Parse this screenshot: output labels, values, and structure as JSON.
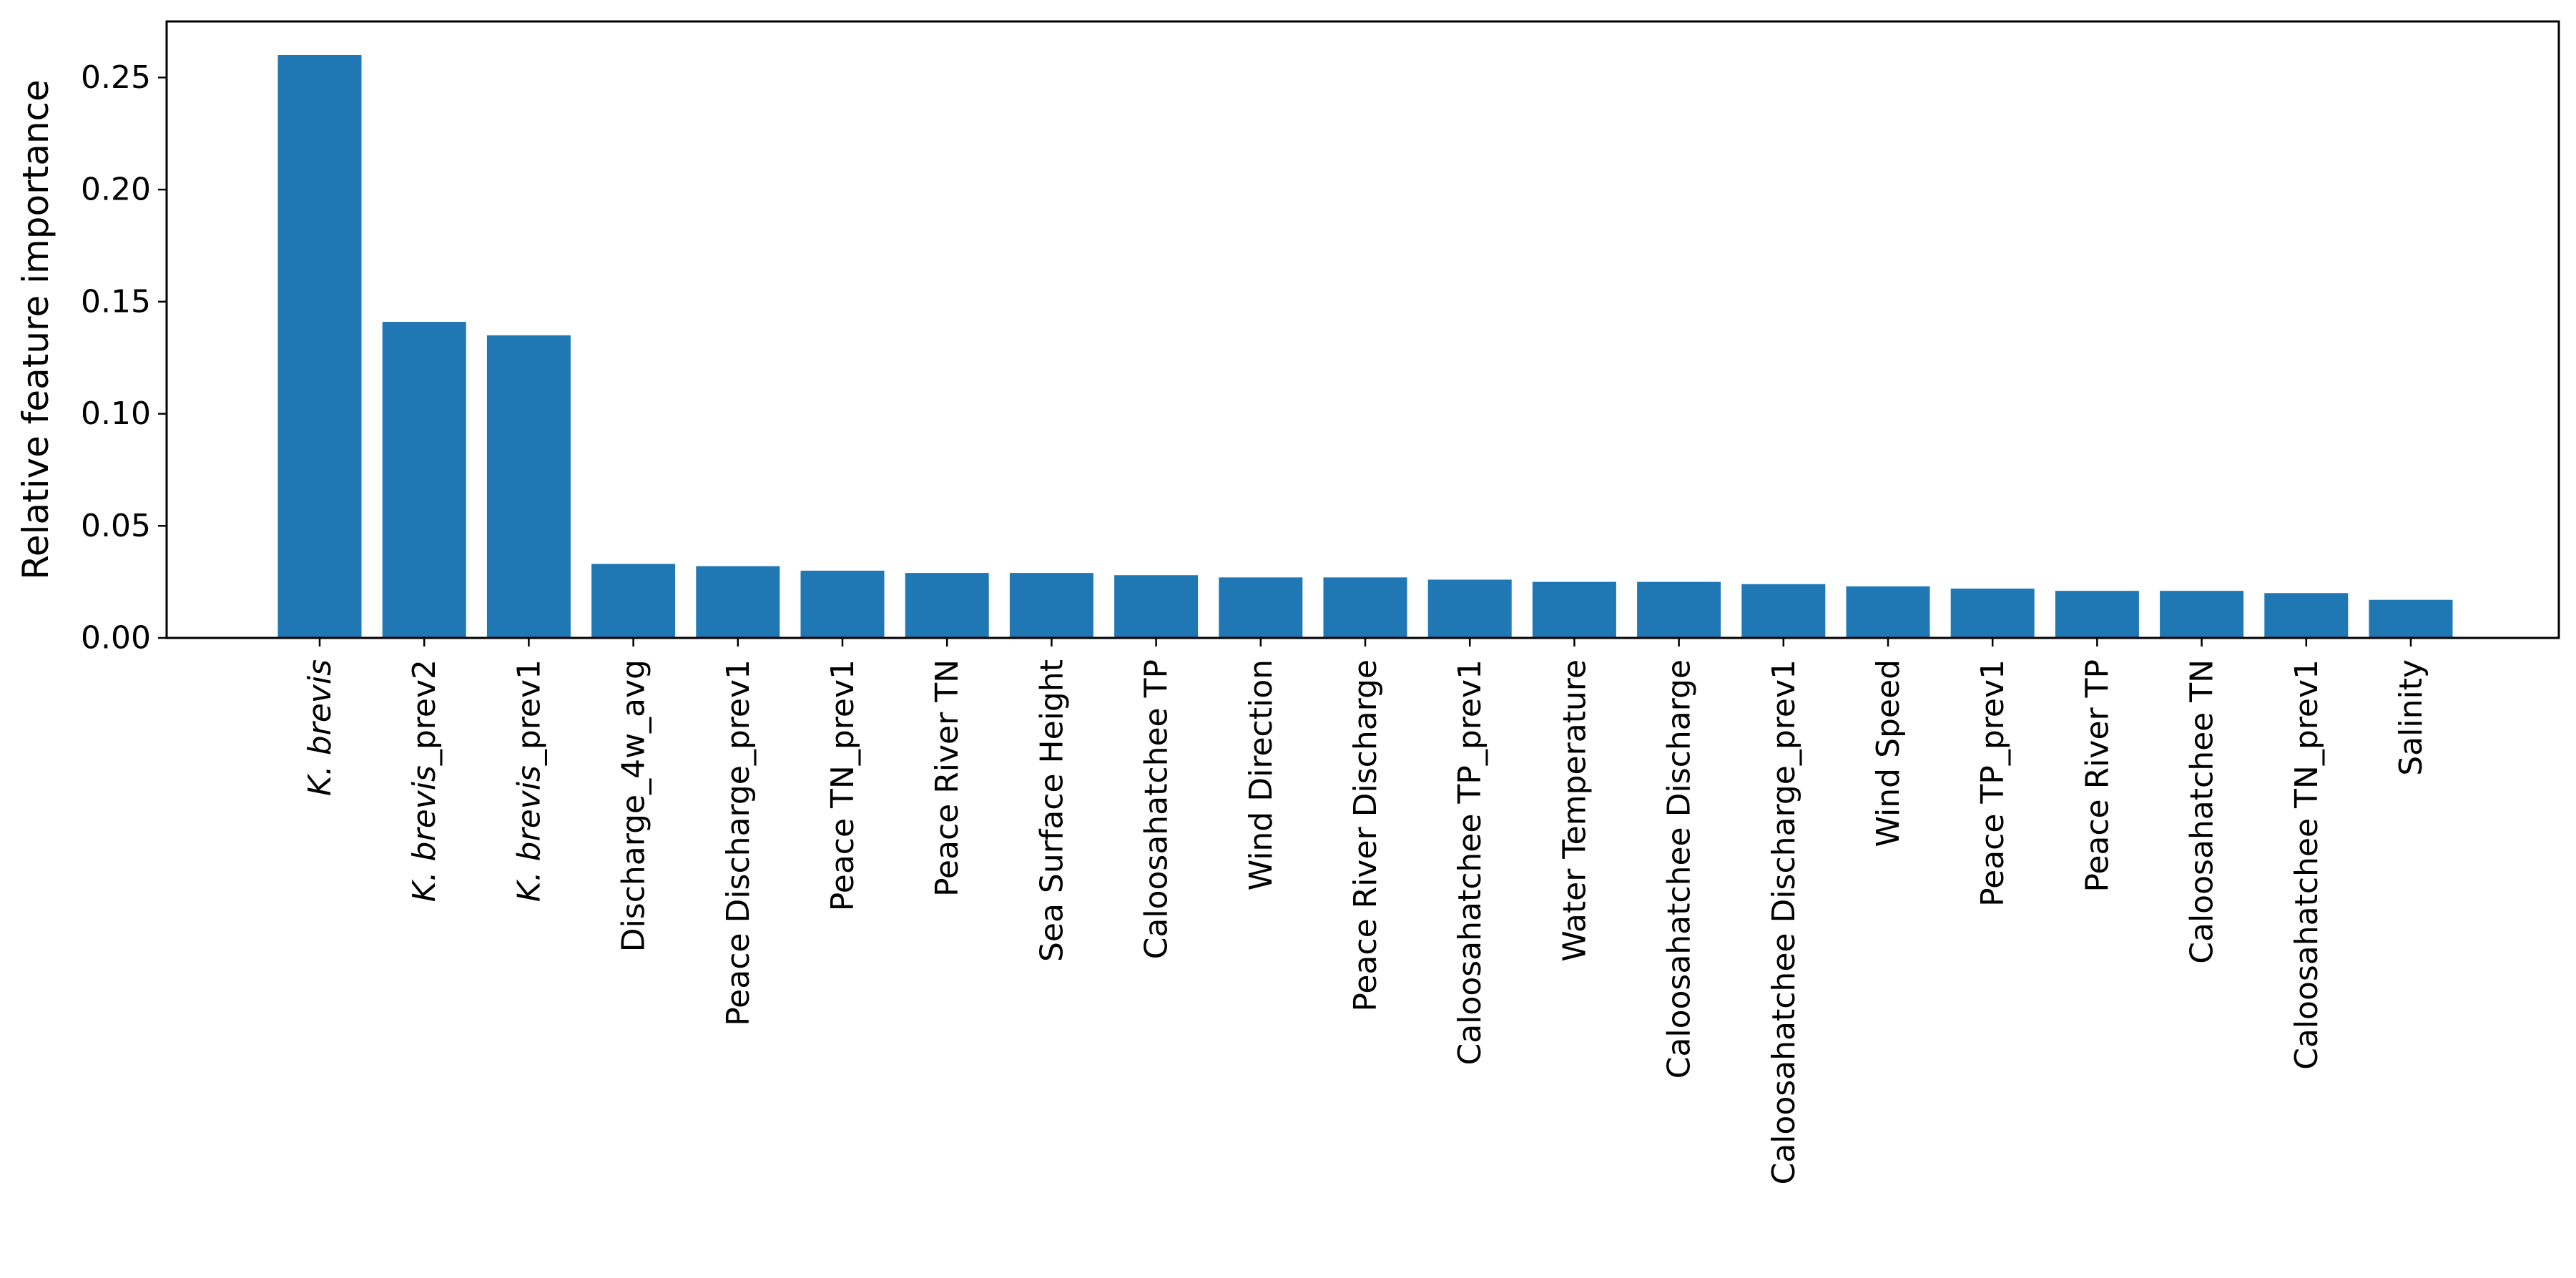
{
  "chart_data": {
    "type": "bar",
    "title": "",
    "xlabel": "",
    "ylabel": "Relative feature importance",
    "ylim": [
      0,
      0.275
    ],
    "yticks": [
      "0.00",
      "0.05",
      "0.10",
      "0.15",
      "0.20",
      "0.25"
    ],
    "grid": false,
    "bar_color": "#1f77b4",
    "categories": [
      {
        "italic": "K.  brevis",
        "rest": ""
      },
      {
        "italic": "K.  brevis",
        "rest": "_prev2"
      },
      {
        "italic": "K.  brevis",
        "rest": "_prev1"
      },
      {
        "italic": "",
        "rest": "Discharge_4w_avg"
      },
      {
        "italic": "",
        "rest": "Peace Discharge_prev1"
      },
      {
        "italic": "",
        "rest": "Peace TN_prev1"
      },
      {
        "italic": "",
        "rest": "Peace River TN"
      },
      {
        "italic": "",
        "rest": "Sea Surface Height"
      },
      {
        "italic": "",
        "rest": "Caloosahatchee TP"
      },
      {
        "italic": "",
        "rest": "Wind Direction"
      },
      {
        "italic": "",
        "rest": "Peace River Discharge"
      },
      {
        "italic": "",
        "rest": "Caloosahatchee TP_prev1"
      },
      {
        "italic": "",
        "rest": "Water Temperature"
      },
      {
        "italic": "",
        "rest": "Caloosahatchee Discharge"
      },
      {
        "italic": "",
        "rest": "Caloosahatchee Discharge_prev1"
      },
      {
        "italic": "",
        "rest": "Wind Speed"
      },
      {
        "italic": "",
        "rest": "Peace TP_prev1"
      },
      {
        "italic": "",
        "rest": "Peace River TP"
      },
      {
        "italic": "",
        "rest": "Caloosahatchee TN"
      },
      {
        "italic": "",
        "rest": "Caloosahatchee TN_prev1"
      },
      {
        "italic": "",
        "rest": "Salinity"
      }
    ],
    "values": [
      0.26,
      0.141,
      0.135,
      0.033,
      0.032,
      0.03,
      0.029,
      0.029,
      0.028,
      0.027,
      0.027,
      0.026,
      0.025,
      0.025,
      0.024,
      0.023,
      0.022,
      0.021,
      0.021,
      0.02,
      0.017
    ]
  }
}
